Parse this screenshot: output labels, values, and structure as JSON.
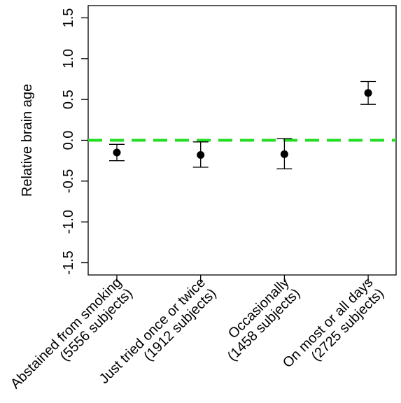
{
  "chart_data": {
    "type": "scatter",
    "title": "",
    "xlabel": "",
    "ylabel": "Relative brain age",
    "ylim": [
      -1.65,
      1.65
    ],
    "yticks": [
      -1.5,
      -1.0,
      -0.5,
      0.0,
      0.5,
      1.0,
      1.5
    ],
    "ytick_labels": [
      "-1.5",
      "-1.0",
      "-0.5",
      "0.0",
      "0.5",
      "1.0",
      "1.5"
    ],
    "categories": [
      [
        "Abstained from smoking",
        "(5556 subjects)"
      ],
      [
        "Just tried once or twice",
        "(1912 subjects)"
      ],
      [
        "Occasionally",
        "(1458 subjects)"
      ],
      [
        "On most or all days",
        "(2725 subjects)"
      ]
    ],
    "series": [
      {
        "values": [
          -0.15,
          -0.18,
          -0.17,
          0.58
        ],
        "lower": [
          -0.25,
          -0.33,
          -0.35,
          0.44
        ],
        "upper": [
          -0.05,
          -0.02,
          0.02,
          0.72
        ]
      }
    ],
    "reference_line": {
      "y": 0.0,
      "color": "#22dd22",
      "style": "dashed"
    },
    "grid": false,
    "colors": {
      "points": "#000000",
      "axis": "#000000"
    }
  }
}
